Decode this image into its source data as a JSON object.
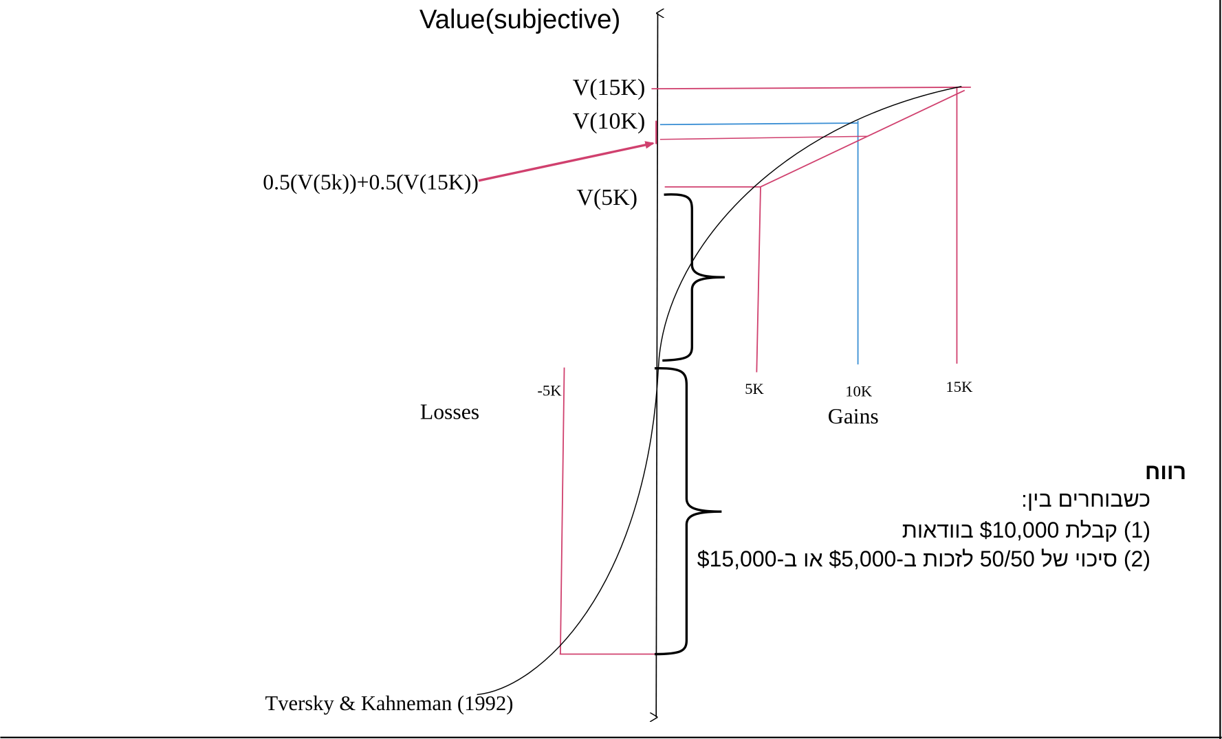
{
  "colors": {
    "pink": "#d0406e",
    "blue": "#3b8fd4",
    "ink": "#000000"
  },
  "axis": {
    "title": "Value(subjective)"
  },
  "labels": {
    "v15": "V(15K)",
    "v10": "V(10K)",
    "v5": "V(5K)",
    "expected": "0.5(V(5k))+0.5(V(15K))",
    "neg5k": "-5K",
    "x5k": "5K",
    "x10k": "10K",
    "x15k": "15K",
    "losses": "Losses",
    "gains": "Gains",
    "citation": "Tversky & Kahneman (1992)"
  },
  "note": {
    "heading": "רווח",
    "line1": "כשבוחרים בין:",
    "line2": "(1) קבלת $10,000 בוודאות",
    "line3": "(2) סיכוי של 50/50 לזכות ב-$5,000 או ב-$15,000"
  }
}
